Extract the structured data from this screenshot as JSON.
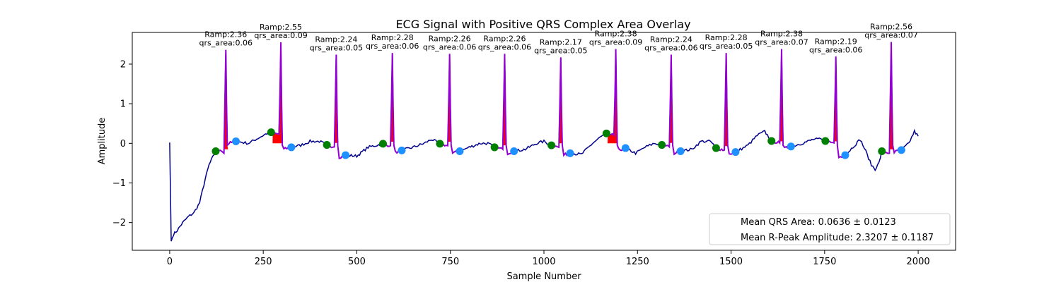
{
  "chart_data": {
    "type": "line",
    "title": "ECG Signal with Positive QRS Complex Area Overlay",
    "xlabel": "Sample Number",
    "ylabel": "Amplitude",
    "xlim": [
      -100,
      2100
    ],
    "ylim": [
      -2.7,
      2.8
    ],
    "xticks": [
      0,
      250,
      500,
      750,
      1000,
      1250,
      1500,
      1750,
      2000
    ],
    "yticks": [
      -2,
      -1,
      0,
      1,
      2
    ],
    "grid": false,
    "legend_position": "bottom-right",
    "colors": {
      "signal": "#00008b",
      "qrs_fill": "#ff0000",
      "qrs_line": "#9400d3",
      "onset_marker": "#008000",
      "offset_marker": "#1e90ff"
    },
    "beats": [
      {
        "r_x": 150,
        "ramp_label": "Ramp:2.36",
        "area_label": "qrs_area:0.06",
        "r_peak": 2.36,
        "qrs_area": 0.06,
        "onset": [
          123,
          -0.2
        ],
        "offset": [
          177,
          0.05
        ]
      },
      {
        "r_x": 297,
        "ramp_label": "Ramp:2.55",
        "area_label": "qrs_area:0.09",
        "r_peak": 2.55,
        "qrs_area": 0.09,
        "onset": [
          271,
          0.28
        ],
        "offset": [
          325,
          -0.1
        ]
      },
      {
        "r_x": 445,
        "ramp_label": "Ramp:2.24",
        "area_label": "qrs_area:0.05",
        "r_peak": 2.24,
        "qrs_area": 0.05,
        "onset": [
          420,
          -0.04
        ],
        "offset": [
          470,
          -0.3
        ]
      },
      {
        "r_x": 595,
        "ramp_label": "Ramp:2.28",
        "area_label": "qrs_area:0.06",
        "r_peak": 2.28,
        "qrs_area": 0.06,
        "onset": [
          570,
          -0.01
        ],
        "offset": [
          620,
          -0.18
        ]
      },
      {
        "r_x": 748,
        "ramp_label": "Ramp:2.26",
        "area_label": "qrs_area:0.06",
        "r_peak": 2.26,
        "qrs_area": 0.06,
        "onset": [
          722,
          -0.01
        ],
        "offset": [
          775,
          -0.2
        ]
      },
      {
        "r_x": 895,
        "ramp_label": "Ramp:2.26",
        "area_label": "qrs_area:0.06",
        "r_peak": 2.26,
        "qrs_area": 0.06,
        "onset": [
          868,
          -0.1
        ],
        "offset": [
          920,
          -0.2
        ]
      },
      {
        "r_x": 1045,
        "ramp_label": "Ramp:2.17",
        "area_label": "qrs_area:0.05",
        "r_peak": 2.17,
        "qrs_area": 0.05,
        "onset": [
          1020,
          -0.05
        ],
        "offset": [
          1070,
          -0.25
        ]
      },
      {
        "r_x": 1192,
        "ramp_label": "Ramp:2.38",
        "area_label": "qrs_area:0.09",
        "r_peak": 2.38,
        "qrs_area": 0.09,
        "onset": [
          1167,
          0.25
        ],
        "offset": [
          1218,
          -0.12
        ]
      },
      {
        "r_x": 1340,
        "ramp_label": "Ramp:2.24",
        "area_label": "qrs_area:0.06",
        "r_peak": 2.24,
        "qrs_area": 0.06,
        "onset": [
          1315,
          -0.04
        ],
        "offset": [
          1365,
          -0.2
        ]
      },
      {
        "r_x": 1487,
        "ramp_label": "Ramp:2.28",
        "area_label": "qrs_area:0.05",
        "r_peak": 2.28,
        "qrs_area": 0.05,
        "onset": [
          1460,
          -0.12
        ],
        "offset": [
          1512,
          -0.22
        ]
      },
      {
        "r_x": 1635,
        "ramp_label": "Ramp:2.38",
        "area_label": "qrs_area:0.07",
        "r_peak": 2.38,
        "qrs_area": 0.07,
        "onset": [
          1608,
          0.06
        ],
        "offset": [
          1660,
          -0.08
        ]
      },
      {
        "r_x": 1780,
        "ramp_label": "Ramp:2.19",
        "area_label": "qrs_area:0.06",
        "r_peak": 2.19,
        "qrs_area": 0.06,
        "onset": [
          1752,
          0.06
        ],
        "offset": [
          1805,
          -0.3
        ]
      },
      {
        "r_x": 1928,
        "ramp_label": "Ramp:2.56",
        "area_label": "qrs_area:0.07",
        "r_peak": 2.56,
        "qrs_area": 0.07,
        "onset": [
          1903,
          -0.2
        ],
        "offset": [
          1955,
          -0.17
        ]
      }
    ],
    "signal_baseline_points": [
      [
        0,
        0.02
      ],
      [
        4,
        -2.47
      ],
      [
        10,
        -2.3
      ],
      [
        20,
        -2.2
      ],
      [
        35,
        -2.0
      ],
      [
        50,
        -1.85
      ],
      [
        65,
        -1.75
      ],
      [
        80,
        -1.5
      ],
      [
        95,
        -0.9
      ],
      [
        105,
        -0.55
      ],
      [
        115,
        -0.35
      ],
      [
        123,
        -0.2
      ],
      [
        135,
        -0.15
      ],
      [
        177,
        0.05
      ],
      [
        210,
        0.0
      ],
      [
        240,
        0.15
      ],
      [
        260,
        0.25
      ],
      [
        271,
        0.28
      ],
      [
        325,
        -0.1
      ],
      [
        350,
        -0.05
      ],
      [
        375,
        0.05
      ],
      [
        400,
        0.05
      ],
      [
        420,
        -0.04
      ],
      [
        470,
        -0.3
      ],
      [
        500,
        -0.32
      ],
      [
        530,
        -0.1
      ],
      [
        570,
        -0.01
      ],
      [
        620,
        -0.18
      ],
      [
        650,
        -0.1
      ],
      [
        680,
        0.0
      ],
      [
        700,
        0.1
      ],
      [
        722,
        -0.01
      ],
      [
        775,
        -0.2
      ],
      [
        800,
        -0.1
      ],
      [
        830,
        0.0
      ],
      [
        850,
        0.0
      ],
      [
        868,
        -0.1
      ],
      [
        920,
        -0.2
      ],
      [
        950,
        -0.15
      ],
      [
        980,
        0.0
      ],
      [
        1000,
        0.05
      ],
      [
        1020,
        -0.05
      ],
      [
        1070,
        -0.25
      ],
      [
        1100,
        -0.28
      ],
      [
        1130,
        0.0
      ],
      [
        1150,
        0.15
      ],
      [
        1167,
        0.25
      ],
      [
        1218,
        -0.12
      ],
      [
        1245,
        -0.25
      ],
      [
        1270,
        -0.1
      ],
      [
        1295,
        0.0
      ],
      [
        1315,
        -0.04
      ],
      [
        1365,
        -0.2
      ],
      [
        1395,
        -0.15
      ],
      [
        1420,
        0.05
      ],
      [
        1445,
        0.05
      ],
      [
        1460,
        -0.12
      ],
      [
        1512,
        -0.22
      ],
      [
        1545,
        -0.05
      ],
      [
        1570,
        0.2
      ],
      [
        1590,
        0.3
      ],
      [
        1608,
        0.06
      ],
      [
        1660,
        -0.08
      ],
      [
        1690,
        0.0
      ],
      [
        1720,
        0.1
      ],
      [
        1740,
        0.1
      ],
      [
        1752,
        0.06
      ],
      [
        1805,
        -0.3
      ],
      [
        1830,
        -0.05
      ],
      [
        1845,
        0.1
      ],
      [
        1860,
        -0.2
      ],
      [
        1875,
        -0.55
      ],
      [
        1885,
        -0.65
      ],
      [
        1895,
        -0.5
      ],
      [
        1903,
        -0.2
      ],
      [
        1955,
        -0.17
      ],
      [
        1975,
        0.0
      ],
      [
        1990,
        0.3
      ],
      [
        2000,
        0.18
      ]
    ],
    "legend": [
      {
        "text": "Mean QRS Area: 0.0636 ± 0.0123"
      },
      {
        "text": "Mean R-Peak Amplitude: 2.3207 ± 0.1187"
      }
    ]
  }
}
